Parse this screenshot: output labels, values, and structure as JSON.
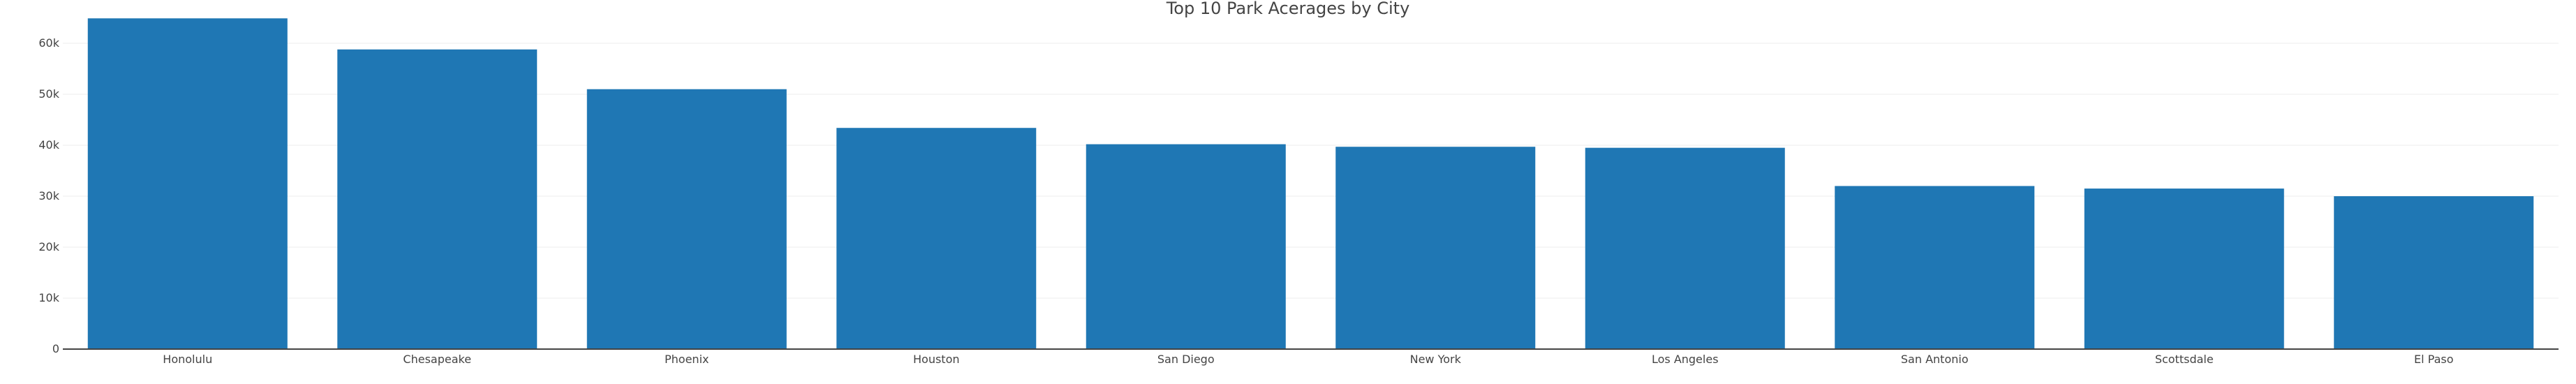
{
  "chart_data": {
    "type": "bar",
    "title": "Top 10 Park Acerages by City",
    "xlabel": "",
    "ylabel": "",
    "categories": [
      "Honolulu",
      "Chesapeake",
      "Phoenix",
      "Houston",
      "San Diego",
      "New York",
      "Los Angeles",
      "San Antonio",
      "Scottsdale",
      "El Paso"
    ],
    "values": [
      64900,
      58800,
      51000,
      43400,
      40200,
      39700,
      39500,
      32000,
      31500,
      30000
    ],
    "ylim": [
      0,
      68500
    ],
    "yticks": [
      0,
      10000,
      20000,
      30000,
      40000,
      50000,
      60000
    ],
    "ytick_labels": [
      "0",
      "10k",
      "20k",
      "30k",
      "40k",
      "50k",
      "60k"
    ],
    "bar_color": "#1f77b4",
    "grid": true,
    "legend": false
  }
}
